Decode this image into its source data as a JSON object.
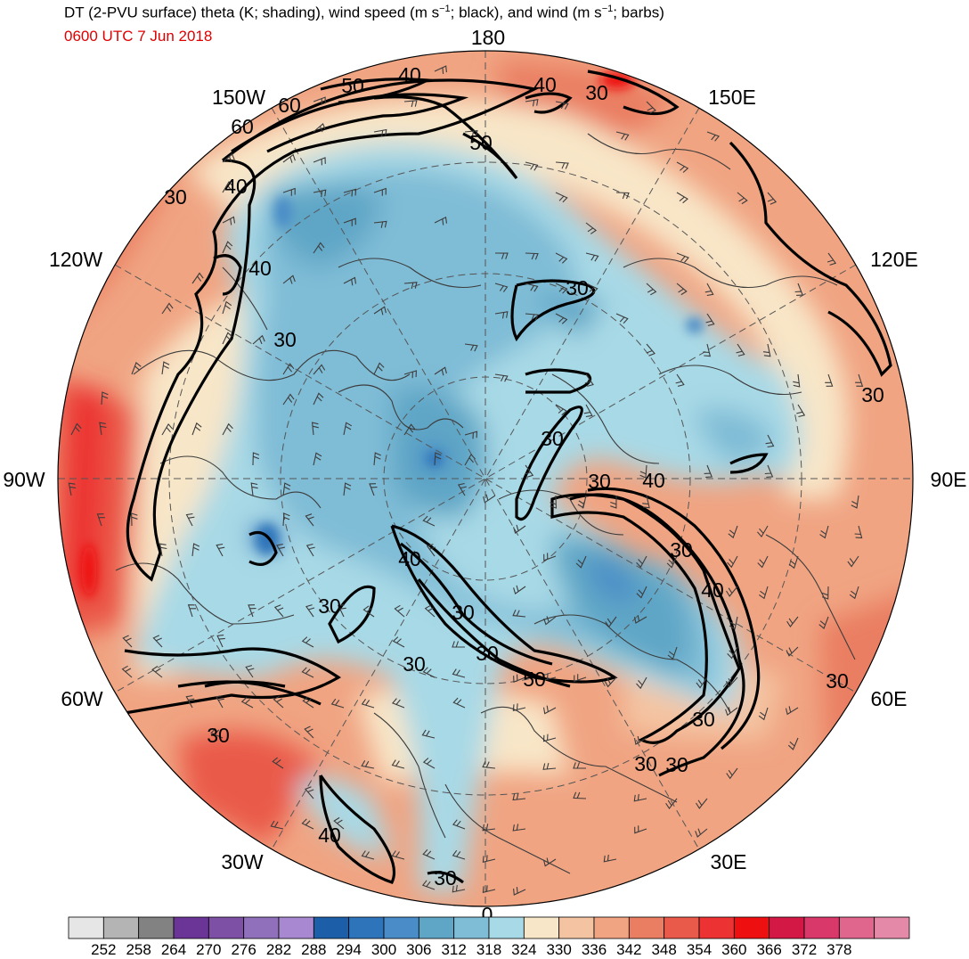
{
  "title_html": "DT (2-PVU surface) theta (K; shading), wind speed (m s<sup style=\"font-size:11px\">−1</sup>; black), and wind (m s<sup style=\"font-size:11px\">−1</sup>; barbs)",
  "title": "DT (2-PVU surface) theta (K; shading), wind speed (m s⁻¹; black), and wind (m s⁻¹; barbs)",
  "valid_time": "0600 UTC 7 Jun 2018",
  "longitude_labels": [
    {
      "id": "lon-180",
      "text": "180"
    },
    {
      "id": "lon-150e",
      "text": "150E"
    },
    {
      "id": "lon-120e",
      "text": "120E"
    },
    {
      "id": "lon-90e",
      "text": "90E"
    },
    {
      "id": "lon-60e",
      "text": "60E"
    },
    {
      "id": "lon-30e",
      "text": "30E"
    },
    {
      "id": "lon-0",
      "text": "0"
    },
    {
      "id": "lon-30w",
      "text": "30W"
    },
    {
      "id": "lon-60w",
      "text": "60W"
    },
    {
      "id": "lon-90w",
      "text": "90W"
    },
    {
      "id": "lon-120w",
      "text": "120W"
    },
    {
      "id": "lon-150w",
      "text": "150W"
    }
  ],
  "colorbar": {
    "colors": [
      "#e6e6e6",
      "#b4b4b4",
      "#828282",
      "#6a3596",
      "#7d50a6",
      "#9070bb",
      "#a888d0",
      "#1c5fa8",
      "#2e74ba",
      "#4a8cc7",
      "#5fa6c6",
      "#7fbcd6",
      "#a8d9e6",
      "#f8e6c8",
      "#f4c4a2",
      "#f0a482",
      "#ea7e62",
      "#ea5a4a",
      "#ec3232",
      "#ee1010",
      "#d41846",
      "#d8386a",
      "#e0668e",
      "#e48aa8"
    ],
    "labels": [
      "252",
      "258",
      "264",
      "270",
      "276",
      "282",
      "288",
      "294",
      "300",
      "306",
      "312",
      "318",
      "324",
      "330",
      "336",
      "342",
      "348",
      "354",
      "360",
      "366",
      "372",
      "378"
    ]
  },
  "contour_labels": [
    "50",
    "40",
    "40",
    "30",
    "60",
    "60",
    "50",
    "40",
    "30",
    "40",
    "30",
    "30",
    "30",
    "30",
    "40",
    "30",
    "30",
    "30",
    "30",
    "40",
    "30",
    "30",
    "30",
    "40",
    "50",
    "30",
    "40",
    "30",
    "30",
    "30",
    "30"
  ]
}
